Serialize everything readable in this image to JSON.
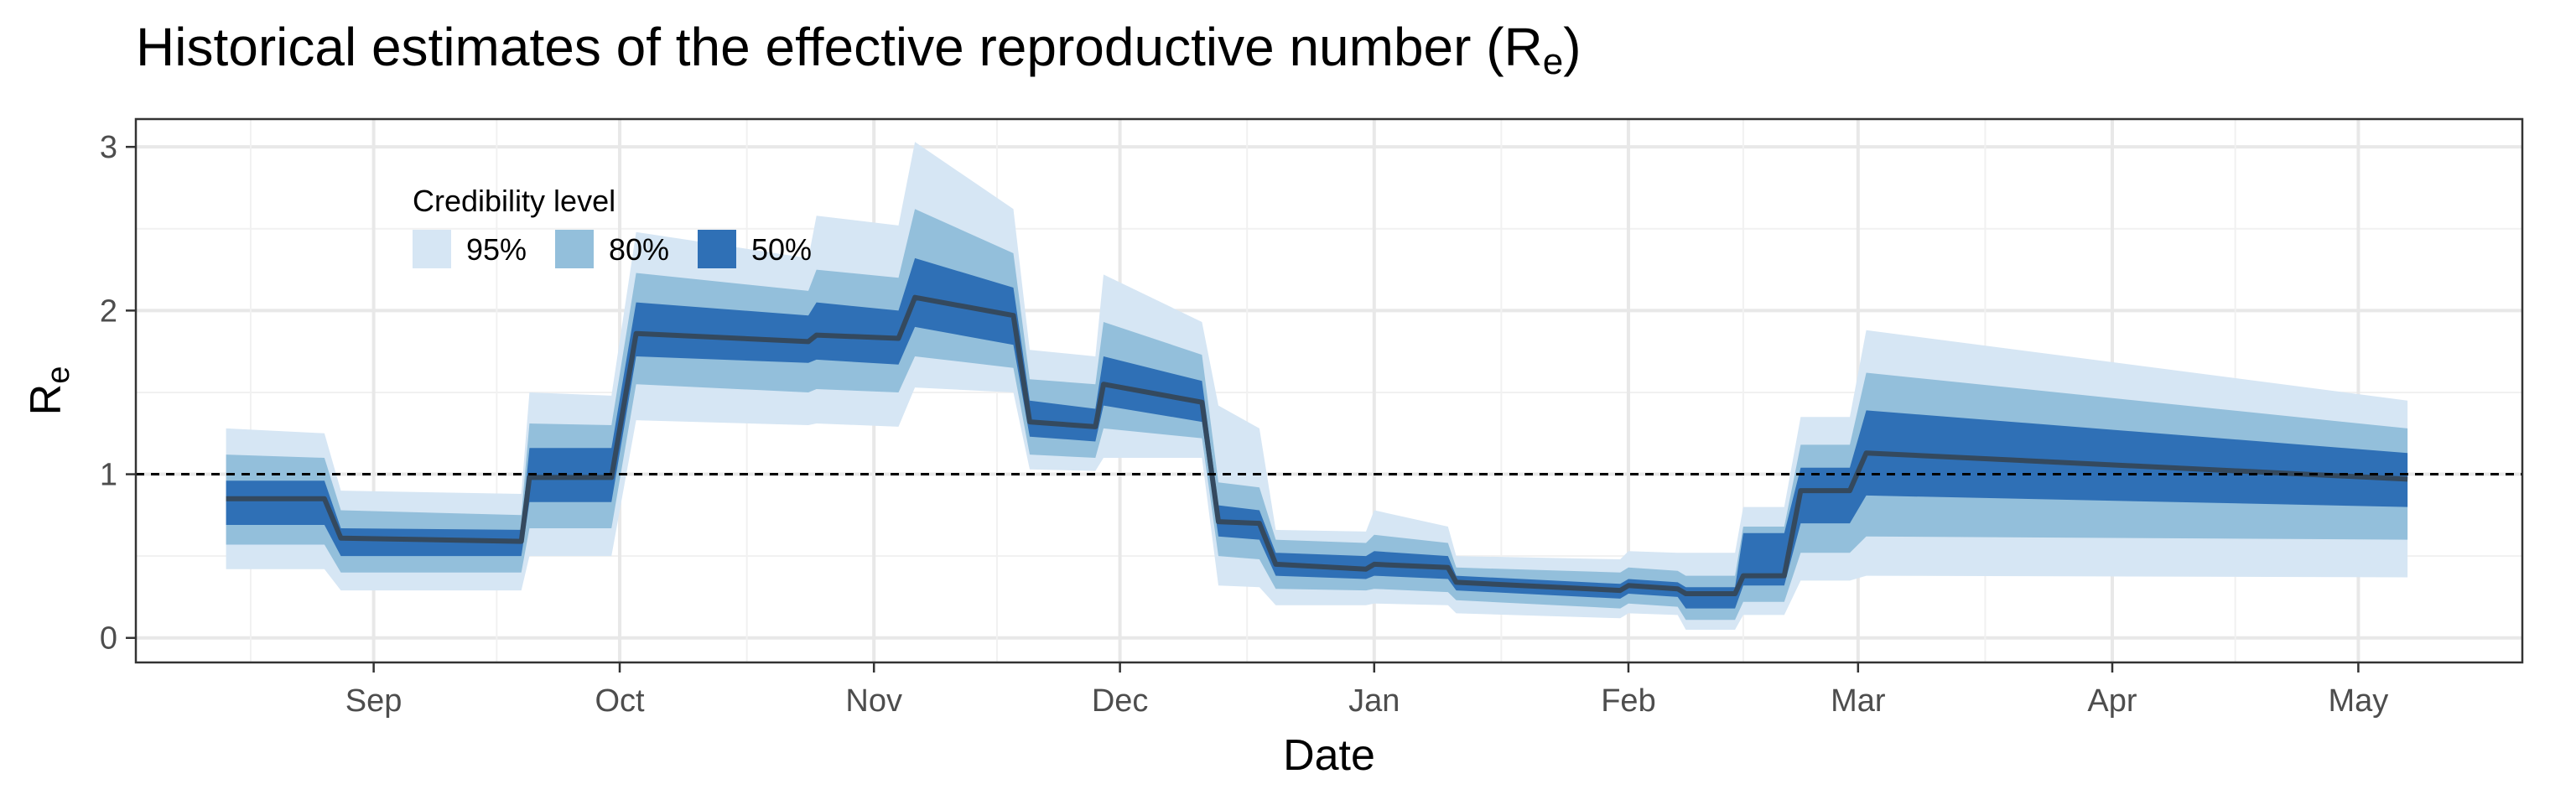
{
  "chart_data": {
    "type": "area",
    "title": "Historical estimates of the effective reproductive number (R",
    "title_subscript": "e",
    "title_suffix": ")",
    "xlabel": "Date",
    "ylabel": "R",
    "ylabel_subscript": "e",
    "ylim": [
      -0.15,
      3.17
    ],
    "xlim": [
      "2020-08-03",
      "2021-05-21"
    ],
    "grid": true,
    "y_ticks": [
      0,
      1,
      2,
      3
    ],
    "x_ticks": [
      {
        "date": "2020-09-01",
        "label": "Sep"
      },
      {
        "date": "2020-10-01",
        "label": "Oct"
      },
      {
        "date": "2020-11-01",
        "label": "Nov"
      },
      {
        "date": "2020-12-01",
        "label": "Dec"
      },
      {
        "date": "2021-01-01",
        "label": "Jan"
      },
      {
        "date": "2021-02-01",
        "label": "Feb"
      },
      {
        "date": "2021-03-01",
        "label": "Mar"
      },
      {
        "date": "2021-04-01",
        "label": "Apr"
      },
      {
        "date": "2021-05-01",
        "label": "May"
      }
    ],
    "reference_line": {
      "y": 1,
      "style": "dashed"
    },
    "legend": {
      "title": "Credibility level",
      "placement": "top-left",
      "entries": [
        {
          "label": "95%",
          "color": "#d6e6f4"
        },
        {
          "label": "80%",
          "color": "#93bfdb"
        },
        {
          "label": "50%",
          "color": "#2f70b6"
        }
      ]
    },
    "colors": {
      "band95": "#d6e6f4",
      "band80": "#93bfdb",
      "band50": "#2f70b6",
      "median": "#34495e"
    },
    "series": [
      {
        "x": "2020-08-14",
        "median": 0.85,
        "lo50": 0.69,
        "hi50": 0.96,
        "lo80": 0.57,
        "hi80": 1.12,
        "lo95": 0.42,
        "hi95": 1.28
      },
      {
        "x": "2020-08-26",
        "median": 0.85,
        "lo50": 0.69,
        "hi50": 0.96,
        "lo80": 0.57,
        "hi80": 1.1,
        "lo95": 0.42,
        "hi95": 1.25
      },
      {
        "x": "2020-08-28",
        "median": 0.61,
        "lo50": 0.5,
        "hi50": 0.67,
        "lo80": 0.4,
        "hi80": 0.78,
        "lo95": 0.29,
        "hi95": 0.9
      },
      {
        "x": "2020-09-19",
        "median": 0.59,
        "lo50": 0.5,
        "hi50": 0.66,
        "lo80": 0.4,
        "hi80": 0.75,
        "lo95": 0.29,
        "hi95": 0.88
      },
      {
        "x": "2020-09-20",
        "median": 0.98,
        "lo50": 0.83,
        "hi50": 1.16,
        "lo80": 0.67,
        "hi80": 1.31,
        "lo95": 0.5,
        "hi95": 1.5
      },
      {
        "x": "2020-09-30",
        "median": 0.98,
        "lo50": 0.83,
        "hi50": 1.16,
        "lo80": 0.67,
        "hi80": 1.3,
        "lo95": 0.5,
        "hi95": 1.48
      },
      {
        "x": "2020-10-03",
        "median": 1.86,
        "lo50": 1.72,
        "hi50": 2.05,
        "lo80": 1.55,
        "hi80": 2.23,
        "lo95": 1.33,
        "hi95": 2.48
      },
      {
        "x": "2020-10-24",
        "median": 1.81,
        "lo50": 1.68,
        "hi50": 1.97,
        "lo80": 1.5,
        "hi80": 2.12,
        "lo95": 1.3,
        "hi95": 2.32
      },
      {
        "x": "2020-10-25",
        "median": 1.85,
        "lo50": 1.7,
        "hi50": 2.05,
        "lo80": 1.52,
        "hi80": 2.25,
        "lo95": 1.31,
        "hi95": 2.58
      },
      {
        "x": "2020-11-04",
        "median": 1.83,
        "lo50": 1.67,
        "hi50": 2.0,
        "lo80": 1.5,
        "hi80": 2.2,
        "lo95": 1.29,
        "hi95": 2.52
      },
      {
        "x": "2020-11-06",
        "median": 2.08,
        "lo50": 1.9,
        "hi50": 2.32,
        "lo80": 1.72,
        "hi80": 2.62,
        "lo95": 1.53,
        "hi95": 3.03
      },
      {
        "x": "2020-11-18",
        "median": 1.97,
        "lo50": 1.79,
        "hi50": 2.14,
        "lo80": 1.65,
        "hi80": 2.35,
        "lo95": 1.5,
        "hi95": 2.62
      },
      {
        "x": "2020-11-20",
        "median": 1.32,
        "lo50": 1.23,
        "hi50": 1.45,
        "lo80": 1.12,
        "hi80": 1.58,
        "lo95": 1.03,
        "hi95": 1.76
      },
      {
        "x": "2020-11-28",
        "median": 1.29,
        "lo50": 1.2,
        "hi50": 1.4,
        "lo80": 1.1,
        "hi80": 1.55,
        "lo95": 1.02,
        "hi95": 1.72
      },
      {
        "x": "2020-11-29",
        "median": 1.55,
        "lo50": 1.42,
        "hi50": 1.72,
        "lo80": 1.28,
        "hi80": 1.93,
        "lo95": 1.1,
        "hi95": 2.22
      },
      {
        "x": "2020-12-11",
        "median": 1.44,
        "lo50": 1.32,
        "hi50": 1.57,
        "lo80": 1.22,
        "hi80": 1.73,
        "lo95": 1.1,
        "hi95": 1.93
      },
      {
        "x": "2020-12-13",
        "median": 0.71,
        "lo50": 0.62,
        "hi50": 0.81,
        "lo80": 0.5,
        "hi80": 0.95,
        "lo95": 0.32,
        "hi95": 1.42
      },
      {
        "x": "2020-12-18",
        "median": 0.7,
        "lo50": 0.6,
        "hi50": 0.78,
        "lo80": 0.48,
        "hi80": 0.92,
        "lo95": 0.31,
        "hi95": 1.28
      },
      {
        "x": "2020-12-20",
        "median": 0.45,
        "lo50": 0.38,
        "hi50": 0.52,
        "lo80": 0.3,
        "hi80": 0.6,
        "lo95": 0.2,
        "hi95": 0.66
      },
      {
        "x": "2020-12-31",
        "median": 0.42,
        "lo50": 0.36,
        "hi50": 0.5,
        "lo80": 0.29,
        "hi80": 0.58,
        "lo95": 0.2,
        "hi95": 0.65
      },
      {
        "x": "2021-01-01",
        "median": 0.45,
        "lo50": 0.38,
        "hi50": 0.53,
        "lo80": 0.3,
        "hi80": 0.63,
        "lo95": 0.21,
        "hi95": 0.78
      },
      {
        "x": "2021-01-10",
        "median": 0.43,
        "lo50": 0.36,
        "hi50": 0.5,
        "lo80": 0.28,
        "hi80": 0.58,
        "lo95": 0.2,
        "hi95": 0.68
      },
      {
        "x": "2021-01-11",
        "median": 0.34,
        "lo50": 0.29,
        "hi50": 0.38,
        "lo80": 0.23,
        "hi80": 0.43,
        "lo95": 0.15,
        "hi95": 0.5
      },
      {
        "x": "2021-01-31",
        "median": 0.29,
        "lo50": 0.24,
        "hi50": 0.33,
        "lo80": 0.18,
        "hi80": 0.4,
        "lo95": 0.12,
        "hi95": 0.48
      },
      {
        "x": "2021-02-01",
        "median": 0.32,
        "lo50": 0.27,
        "hi50": 0.36,
        "lo80": 0.21,
        "hi80": 0.43,
        "lo95": 0.15,
        "hi95": 0.53
      },
      {
        "x": "2021-02-07",
        "median": 0.3,
        "lo50": 0.25,
        "hi50": 0.34,
        "lo80": 0.19,
        "hi80": 0.41,
        "lo95": 0.14,
        "hi95": 0.52
      },
      {
        "x": "2021-02-08",
        "median": 0.27,
        "lo50": 0.18,
        "hi50": 0.31,
        "lo80": 0.11,
        "hi80": 0.38,
        "lo95": 0.05,
        "hi95": 0.52
      },
      {
        "x": "2021-02-14",
        "median": 0.27,
        "lo50": 0.18,
        "hi50": 0.31,
        "lo80": 0.11,
        "hi80": 0.38,
        "lo95": 0.05,
        "hi95": 0.52
      },
      {
        "x": "2021-02-15",
        "median": 0.38,
        "lo50": 0.32,
        "hi50": 0.64,
        "lo80": 0.22,
        "hi80": 0.68,
        "lo95": 0.14,
        "hi95": 0.8
      },
      {
        "x": "2021-02-20",
        "median": 0.38,
        "lo50": 0.32,
        "hi50": 0.64,
        "lo80": 0.22,
        "hi80": 0.68,
        "lo95": 0.14,
        "hi95": 0.8
      },
      {
        "x": "2021-02-22",
        "median": 0.9,
        "lo50": 0.7,
        "hi50": 1.04,
        "lo80": 0.52,
        "hi80": 1.18,
        "lo95": 0.35,
        "hi95": 1.35
      },
      {
        "x": "2021-02-28",
        "median": 0.9,
        "lo50": 0.7,
        "hi50": 1.04,
        "lo80": 0.52,
        "hi80": 1.18,
        "lo95": 0.35,
        "hi95": 1.35
      },
      {
        "x": "2021-03-02",
        "median": 1.13,
        "lo50": 0.87,
        "hi50": 1.39,
        "lo80": 0.62,
        "hi80": 1.62,
        "lo95": 0.38,
        "hi95": 1.88
      },
      {
        "x": "2021-05-07",
        "median": 0.97,
        "lo50": 0.8,
        "hi50": 1.13,
        "lo80": 0.6,
        "hi80": 1.28,
        "lo95": 0.37,
        "hi95": 1.45
      }
    ]
  }
}
